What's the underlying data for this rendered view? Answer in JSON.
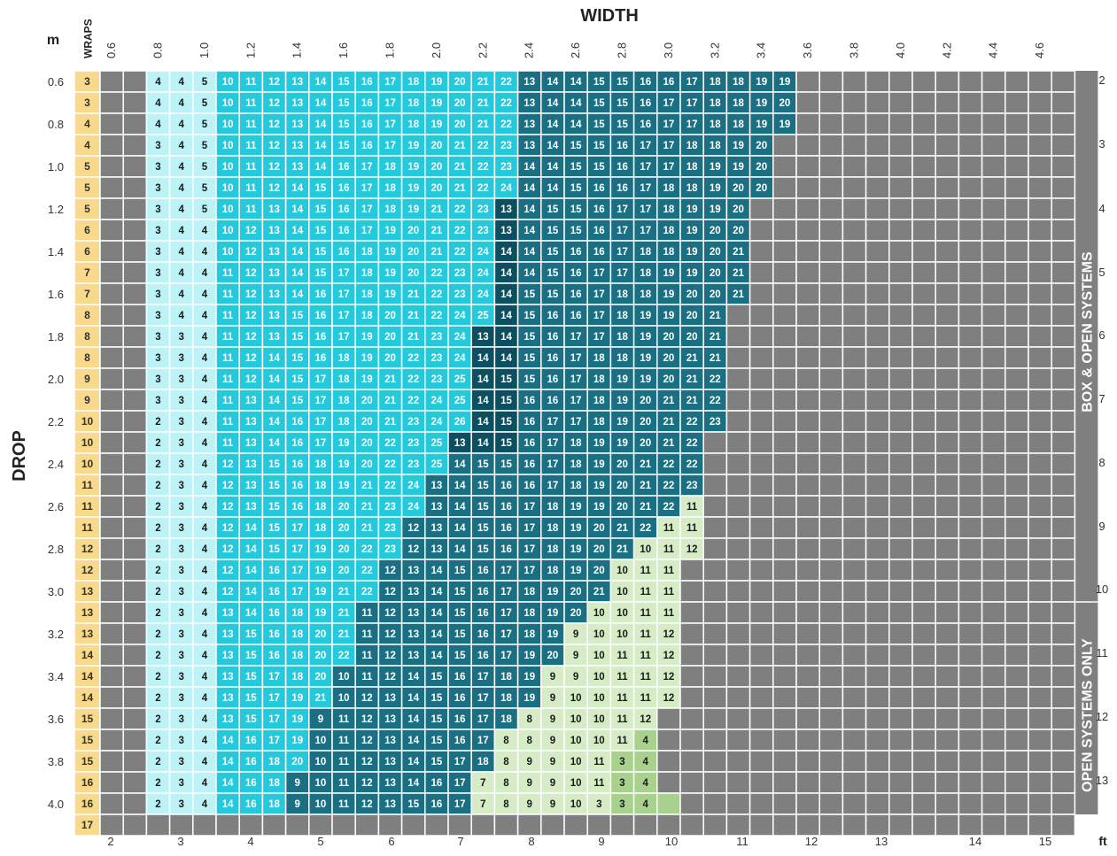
{
  "labels": {
    "width_title": "WIDTH",
    "drop_title": "DROP",
    "unit_m": "m",
    "unit_ft": "ft",
    "wraps_header": "WRAPS",
    "side_box": "BOX & OPEN SYSTEMS",
    "side_open": "OPEN SYSTEMS ONLY"
  },
  "colors": {
    "wraps": "#f9d98b",
    "grey": "#7f7f7f",
    "light_cyan": "#bdf2f7",
    "cyan": "#25c9dc",
    "teal": "#1b6f83",
    "dark_teal": "#0b4f61",
    "light_green": "#d6ecc7",
    "green": "#a8d18d",
    "band_grey": "#7f7f7f"
  },
  "chart_data": {
    "type": "table",
    "x_labels": [
      "0.6",
      "0.8",
      "1.0",
      "1.2",
      "1.4",
      "1.6",
      "1.8",
      "2.0",
      "2.2",
      "2.4",
      "2.6",
      "2.8",
      "3.0",
      "3.2",
      "3.4",
      "3.6",
      "3.8",
      "4.0",
      "4.2",
      "4.4",
      "4.6"
    ],
    "y_labels": [
      "0.6",
      "0.8",
      "1.0",
      "1.2",
      "1.4",
      "1.6",
      "1.8",
      "2.0",
      "2.2",
      "2.4",
      "2.6",
      "2.8",
      "3.0",
      "3.2",
      "3.4",
      "3.6",
      "3.8",
      "4.0"
    ],
    "ft_bottom": [
      "2",
      "3",
      "4",
      "5",
      "6",
      "7",
      "8",
      "9",
      "10",
      "11",
      "12",
      "13",
      "14",
      "15"
    ],
    "ft_right": [
      "2",
      "3",
      "4",
      "5",
      "6",
      "7",
      "8",
      "9",
      "10",
      "11",
      "12",
      "13"
    ],
    "wraps": [
      "3",
      "3",
      "4",
      "4",
      "5",
      "5",
      "5",
      "6",
      "6",
      "7",
      "7",
      "8",
      "8",
      "8",
      "9",
      "9",
      "10",
      "10",
      "10",
      "11",
      "11",
      "11",
      "12",
      "12",
      "13",
      "13",
      "13",
      "14",
      "14",
      "14",
      "15",
      "15",
      "15",
      "16",
      "16",
      "17"
    ],
    "rows": [
      "_,_,4,4,5,10,11,12,13,14,15,16,17,18,19,20,21,22,13,14,14,15,15,16,16,17,18,18,19,19,_,_,_,_,_,_,_,_,_,_,_,_",
      "_,_,4,4,5,10,11,12,13,14,15,16,17,18,19,20,21,22,13,14,14,15,15,16,17,17,18,18,19,20,_,_,_,_,_,_,_,_,_,_,_,_",
      "_,_,4,4,5,10,11,12,13,14,15,16,17,18,19,20,21,22,13,14,14,15,15,16,17,17,18,18,19,19,_,_,_,_,_,_,_,_,_,_,_,_",
      "_,_,3,4,5,10,11,12,13,14,15,16,17,19,20,21,22,23,13,14,15,15,16,17,17,18,18,19,20,_,_,_,_,_,_,_,_,_,_,_,_,_",
      "_,_,3,4,5,10,11,12,13,14,16,17,18,19,20,21,22,23,14,14,15,15,16,17,17,18,19,19,20,_,_,_,_,_,_,_,_,_,_,_,_,_",
      "_,_,3,4,5,10,11,12,14,15,16,17,18,19,20,21,22,24,14,14,15,16,16,17,18,18,19,20,20,_,_,_,_,_,_,_,_,_,_,_,_,_",
      "_,_,3,4,5,10,11,13,14,15,16,17,18,19,21,22,23,13,14,15,15,16,17,17,18,19,19,20,_,_,_,_,_,_,_,_,_,_,_,_,_,_",
      "_,_,3,4,4,10,12,13,14,15,16,17,19,20,21,22,23,13,14,15,15,16,17,17,18,19,20,20,_,_,_,_,_,_,_,_,_,_,_,_,_,_",
      "_,_,3,4,4,10,12,13,14,15,16,18,19,20,21,22,24,14,14,15,16,16,17,18,18,19,20,21,_,_,_,_,_,_,_,_,_,_,_,_,_,_",
      "_,_,3,4,4,11,12,13,14,15,17,18,19,20,22,23,24,14,14,15,16,17,17,18,19,19,20,21,_,_,_,_,_,_,_,_,_,_,_,_,_,_",
      "_,_,3,4,4,11,12,13,14,16,17,18,19,21,22,23,24,14,15,15,16,17,18,18,19,20,20,21,_,_,_,_,_,_,_,_,_,_,_,_,_,_",
      "_,_,3,4,4,11,12,13,15,16,17,18,20,21,22,24,25,14,15,16,16,17,18,19,19,20,21,_,_,_,_,_,_,_,_,_,_,_,_,_,_,_",
      "_,_,3,3,4,11,12,13,15,16,17,19,20,21,23,24,13,14,15,16,17,17,18,19,20,20,21,_,_,_,_,_,_,_,_,_,_,_,_,_,_,_",
      "_,_,3,3,4,11,12,14,15,16,18,19,20,22,23,24,14,14,15,16,17,18,18,19,20,21,21,_,_,_,_,_,_,_,_,_,_,_,_,_,_,_",
      "_,_,3,3,4,11,12,14,15,17,18,19,21,22,23,25,14,15,15,16,17,18,19,19,20,21,22,_,_,_,_,_,_,_,_,_,_,_,_,_,_,_",
      "_,_,3,3,4,11,13,14,15,17,18,20,21,22,24,25,14,15,16,16,17,18,19,20,21,21,22,_,_,_,_,_,_,_,_,_,_,_,_,_,_,_",
      "_,_,2,3,4,11,13,14,16,17,18,20,21,23,24,26,14,15,16,17,17,18,19,20,21,22,23,_,_,_,_,_,_,_,_,_,_,_,_,_,_,_",
      "_,_,2,3,4,11,13,14,16,17,19,20,22,23,25,13,14,15,16,17,18,19,19,20,21,22,_,_,_,_,_,_,_,_,_,_,_,_,_,_,_,_",
      "_,_,2,3,4,12,13,15,16,18,19,20,22,23,25,14,15,15,16,17,18,19,20,21,22,22,_,_,_,_,_,_,_,_,_,_,_,_,_,_,_,_",
      "_,_,2,3,4,12,13,15,16,18,19,21,22,24,13,14,15,16,16,17,18,19,20,21,22,23,_,_,_,_,_,_,_,_,_,_,_,_,_,_,_,_",
      "_,_,2,3,4,12,13,15,16,18,20,21,23,24,13,14,15,16,17,18,19,19,20,21,22,11,_,_,_,_,_,_,_,_,_,_,_,_,_,_,_,_",
      "_,_,2,3,4,12,14,15,17,18,20,21,23,12,13,14,15,16,17,18,19,20,21,22,11,11,_,_,_,_,_,_,_,_,_,_,_,_,_,_,_,_",
      "_,_,2,3,4,12,14,15,17,19,20,22,23,12,13,14,15,16,17,18,19,20,21,10,11,12,_,_,_,_,_,_,_,_,_,_,_,_,_,_,_,_",
      "_,_,2,3,4,12,14,16,17,19,20,22,12,13,14,15,16,17,17,18,19,20,10,11,11,_,_,_,_,_,_,_,_,_,_,_,_,_,_,_,_,_",
      "_,_,2,3,4,12,14,16,17,19,21,22,12,13,14,15,16,17,18,19,20,21,10,11,11,_,_,_,_,_,_,_,_,_,_,_,_,_,_,_,_,_",
      "_,_,2,3,4,13,14,16,18,19,21,11,12,13,14,15,16,17,18,19,20,10,10,11,11,_,_,_,_,_,_,_,_,_,_,_,_,_,_,_,_,_",
      "_,_,2,3,4,13,15,16,18,20,21,11,12,13,14,15,16,17,18,19,9,10,10,11,12,_,_,_,_,_,_,_,_,_,_,_,_,_,_,_,_,_",
      "_,_,2,3,4,13,15,16,18,20,22,11,12,13,14,15,16,17,19,20,9,10,11,11,12,_,_,_,_,_,_,_,_,_,_,_,_,_,_,_,_,_",
      "_,_,2,3,4,13,15,17,18,20,10,11,12,14,15,16,17,18,19,9,9,10,11,11,12,_,_,_,_,_,_,_,_,_,_,_,_,_,_,_,_,_",
      "_,_,2,3,4,13,15,17,19,21,10,12,13,14,15,16,17,18,19,9,10,10,11,11,12,_,_,_,_,_,_,_,_,_,_,_,_,_,_,_,_,_",
      "_,_,2,3,4,13,15,17,19,9,11,12,13,14,15,16,17,18,8,9,10,10,11,12,_,_,_,_,_,_,_,_,_,_,_,_,_,_,_,_,_,_",
      "_,_,2,3,4,14,16,17,19,10,11,12,13,14,15,16,17,8,8,9,10,10,11,4,_,_,_,_,_,_,_,_,_,_,_,_,_,_,_,_,_,_",
      "_,_,2,3,4,14,16,18,20,10,11,12,13,14,15,17,18,8,9,9,10,11,3,4,_,_,_,_,_,_,_,_,_,_,_,_,_,_,_,_,_,_",
      "_,_,2,3,4,14,16,18,9,10,11,12,13,14,16,17,7,8,9,9,10,11,3,4,_,_,_,_,_,_,_,_,_,_,_,_,_,_,_,_,_,_",
      "_,_,2,3,4,14,16,18,9,10,11,12,13,15,16,17,7,8,9,9,10,3,3,4,_,_,_,_,_,_,_,_,_,_,_,_,_,_,_,_,_,_",
      "_,_,_,_,_,_,_,_,_,_,_,_,_,_,_,_,_,_,_,_,_,_,_,_,_,_,_,_,_,_,_,_,_,_,_,_,_,_,_,_,_,_"
    ],
    "color_codes": [
      "GGLLLCCCCCCCCCCCCCTTTTTTTTTTTTGGGGGGGGGGGG",
      "GGLLLCCCCCCCCCCCCCTTTTTTTTTTTTGGGGGGGGGGGG",
      "GGLLLCCCCCCCCCCCCCTTTTTTTTTTTTGGGGGGGGGGGG",
      "GGLLLCCCCCCCCCCCCCTTTTTTTTTTTGGGGGGGGGGGGG",
      "GGLLLCCCCCCCCCCCCCTTTTTTTTTTTGGGGGGGGGGGGG",
      "GGLLLCCCCCCCCCCCCCTTTTTTTTTTTGGGGGGGGGGGGG",
      "GGLLLCCCCCCCCCCCCTTTTTTTTTTTGGGGGGGGGGGGGG",
      "GGLLLCCCCCCCCCCCCTTTTTTTTTTTGGGGGGGGGGGGGG",
      "GGLLLCCCCCCCCCCCCTTTTTTTTTTTGGGGGGGGGGGGGG",
      "GGLLLCCCCCCCCCCCCTTTTTTTTTTTGGGGGGGGGGGGGG",
      "GGLLLCCCCCCCCCCCCTTTTTTTTTTTGGGGGGGGGGGGGG",
      "GGLLLCCCCCCCCCCCCTTTTTTTTTTGGGGGGGGGGGGGGG",
      "GGLLLCCCCCCCCCCCTTTTTTTTTTTGGGGGGGGGGGGGGG",
      "GGLLLCCCCCCCCCCCTTTTTTTTTTTGGGGGGGGGGGGGGG",
      "GGLLLCCCCCCCCCCCTTTTTTTTTTTGGGGGGGGGGGGGGG",
      "GGLLLCCCCCCCCCCCTTTTTTTTTTTGGGGGGGGGGGGGGG",
      "GGLLLCCCCCCCCCCCTTTTTTTTTTTGGGGGGGGGGGGGGG",
      "GGLLLCCCCCCCCCCTTTTTTTTTTTGGGGGGGGGGGGGGGG",
      "GGLLLCCCCCCCCCCTTTTTTTTTTTGGGGGGGGGGGGGGGG",
      "GGLLLCCCCCCCCCTTTTTTTTTTTTGGGGGGGGGGGGGGGG",
      "GGLLLCCCCCCCCCTTTTTTTTTTTgGGGGGGGGGGGGGGGG",
      "GGLLLCCCCCCCCTTTTTTTTTTTggGGGGGGGGGGGGGGGG",
      "GGLLLCCCCCCCCTTTTTTTTTTgggGGGGGGGGGGGGGGGG",
      "GGLLLCCCCCCCTTTTTTTTTTgggGGGGGGGGGGGGGGGGG",
      "GGLLLCCCCCCCTTTTTTTTTTgggGGGGGGGGGGGGGGGGG",
      "GGLLLCCCCCCTTTTTTTTTTggggGGGGGGGGGGGGGGGGG",
      "GGLLLCCCCCCTTTTTTTTTgggggGGGGGGGGGGGGGGGGG",
      "GGLLLCCCCCCTTTTTTTTTgggggGGGGGGGGGGGGGGGGG",
      "GGLLLCCCCCTTTTTTTTTggggggGGGGGGGGGGGGGGGGG",
      "GGLLLCCCCCTTTTTTTTTggggggGGGGGGGGGGGGGGGGG",
      "GGLLLCCCCTTTTTTTTTggggggGGGGGGGGGGGGGGGGGG",
      "GGLLLCCCCTTTTTTTTgggggghGGGGGGGGGGGGGGGGGG",
      "GGLLLCCCCTTTTTTTTggggghhGGGGGGGGGGGGGGGGGG",
      "GGLLLCCCTTTTTTTTgggggghhGGGGGGGGGGGGGGGGGG",
      "GGLLLCCCTTTTTTTTgggggghhhGGGGGGGGGGGGGGGGG",
      "GGGGGGGGGGGGGGGGGGGGGGGGGGGGGGGGGGGGGGGGGG"
    ]
  }
}
